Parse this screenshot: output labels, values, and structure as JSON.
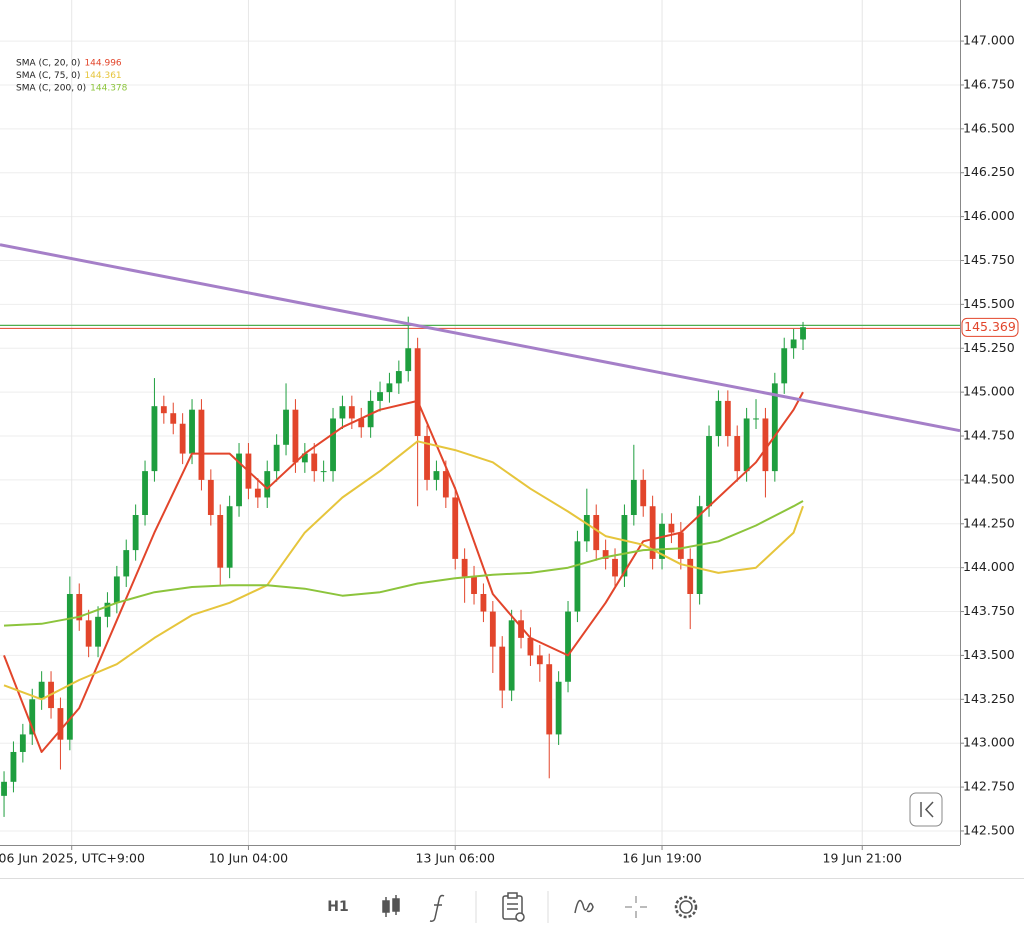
{
  "chart_data": {
    "type": "candlestick",
    "up_color": "#1e9e3e",
    "down_color": "#e2452b",
    "open": [
      142.7,
      142.78,
      142.95,
      143.05,
      143.25,
      143.35,
      143.2,
      143.02,
      143.85,
      143.7,
      143.55,
      143.72,
      143.8,
      143.95,
      144.1,
      144.3,
      144.55,
      144.92,
      144.88,
      144.82,
      144.65,
      144.9,
      144.5,
      144.3,
      144.0,
      144.35,
      144.65,
      144.45,
      144.4,
      144.55,
      144.7,
      144.9,
      144.6,
      144.65,
      144.55,
      144.55,
      144.85,
      144.92,
      144.85,
      144.8,
      144.95,
      145.0,
      145.05,
      145.12,
      145.25,
      144.75,
      144.5,
      144.55,
      144.4,
      144.05,
      143.95,
      143.85,
      143.75,
      143.55,
      143.3,
      143.7,
      143.6,
      143.5,
      143.45,
      143.05,
      143.35,
      143.75,
      144.15,
      144.3,
      144.1,
      144.05,
      143.95,
      144.3,
      144.5,
      144.35,
      144.05,
      144.25,
      144.2,
      144.05,
      143.85,
      144.35,
      144.75,
      144.95,
      144.75,
      144.55,
      144.85,
      144.85,
      144.55,
      145.05,
      145.25,
      145.3
    ],
    "high": [
      142.84,
      143.01,
      143.11,
      143.31,
      143.41,
      143.41,
      143.26,
      143.95,
      143.91,
      143.76,
      143.78,
      143.86,
      144.01,
      144.16,
      144.36,
      144.61,
      145.08,
      144.98,
      144.94,
      144.88,
      144.96,
      144.96,
      144.56,
      144.36,
      144.41,
      144.71,
      144.71,
      144.51,
      144.61,
      144.76,
      145.05,
      144.96,
      144.71,
      144.71,
      144.61,
      144.91,
      144.98,
      144.98,
      144.91,
      145.01,
      145.06,
      145.11,
      145.18,
      145.43,
      145.31,
      144.81,
      144.61,
      144.61,
      144.46,
      144.11,
      144.01,
      143.91,
      143.81,
      143.61,
      143.76,
      143.76,
      143.66,
      143.56,
      143.51,
      143.41,
      143.81,
      144.21,
      144.45,
      144.36,
      144.16,
      144.11,
      144.36,
      144.7,
      144.56,
      144.41,
      144.31,
      144.31,
      144.26,
      144.11,
      144.41,
      144.81,
      145.01,
      145.01,
      144.81,
      144.91,
      144.96,
      144.91,
      145.11,
      145.31,
      145.36,
      145.4
    ],
    "low": [
      142.58,
      142.72,
      142.89,
      142.99,
      143.19,
      143.14,
      142.85,
      142.96,
      143.64,
      143.49,
      143.49,
      143.66,
      143.74,
      143.89,
      144.04,
      144.24,
      144.49,
      144.82,
      144.76,
      144.59,
      144.59,
      144.44,
      144.24,
      143.9,
      143.94,
      144.29,
      144.39,
      144.34,
      144.34,
      144.49,
      144.64,
      144.54,
      144.54,
      144.49,
      144.49,
      144.49,
      144.79,
      144.79,
      144.74,
      144.74,
      144.89,
      144.94,
      144.99,
      145.06,
      144.35,
      144.44,
      144.44,
      144.34,
      143.99,
      143.8,
      143.79,
      143.69,
      143.4,
      143.2,
      143.24,
      143.54,
      143.44,
      143.35,
      142.8,
      142.99,
      143.29,
      143.69,
      144.09,
      144.04,
      143.99,
      143.89,
      143.89,
      144.24,
      144.29,
      143.99,
      143.99,
      144.14,
      143.99,
      143.65,
      143.79,
      144.29,
      144.69,
      144.69,
      144.49,
      144.49,
      144.79,
      144.4,
      144.49,
      144.99,
      145.19,
      145.24
    ],
    "close": [
      142.78,
      142.95,
      143.05,
      143.25,
      143.35,
      143.2,
      143.02,
      143.85,
      143.7,
      143.55,
      143.72,
      143.8,
      143.95,
      144.1,
      144.3,
      144.55,
      144.92,
      144.88,
      144.82,
      144.65,
      144.9,
      144.5,
      144.3,
      144.0,
      144.35,
      144.65,
      144.45,
      144.4,
      144.55,
      144.7,
      144.9,
      144.6,
      144.65,
      144.55,
      144.55,
      144.85,
      144.92,
      144.85,
      144.8,
      144.95,
      145.0,
      145.05,
      145.12,
      145.25,
      144.75,
      144.5,
      144.55,
      144.4,
      144.05,
      143.95,
      143.85,
      143.75,
      143.55,
      143.3,
      143.7,
      143.6,
      143.5,
      143.45,
      143.05,
      143.35,
      143.75,
      144.15,
      144.3,
      144.1,
      144.05,
      143.95,
      144.3,
      144.5,
      144.35,
      144.05,
      144.25,
      144.2,
      144.05,
      143.85,
      144.35,
      144.75,
      144.95,
      144.75,
      144.55,
      144.85,
      144.85,
      144.55,
      145.05,
      145.25,
      145.3,
      145.37
    ],
    "series": [
      {
        "name": "SMA (C, 20, 0)",
        "color": "#e2452b",
        "last": 144.996,
        "x": [
          0,
          4,
          8,
          12,
          16,
          20,
          24,
          28,
          32,
          36,
          40,
          44,
          48,
          52,
          56,
          60,
          64,
          68,
          72,
          76,
          80,
          84,
          85
        ],
        "values": [
          143.5,
          142.95,
          143.2,
          143.7,
          144.2,
          144.65,
          144.65,
          144.45,
          144.65,
          144.8,
          144.9,
          144.95,
          144.45,
          143.85,
          143.6,
          143.5,
          143.8,
          144.15,
          144.2,
          144.4,
          144.6,
          144.9,
          145.0
        ]
      },
      {
        "name": "SMA (C, 75, 0)",
        "color": "#e6c53c",
        "last": 144.361,
        "x": [
          0,
          4,
          8,
          12,
          16,
          20,
          24,
          28,
          32,
          36,
          40,
          44,
          48,
          52,
          56,
          60,
          64,
          68,
          72,
          76,
          80,
          84,
          85
        ],
        "values": [
          143.33,
          143.25,
          143.36,
          143.45,
          143.6,
          143.73,
          143.8,
          143.9,
          144.2,
          144.4,
          144.55,
          144.72,
          144.67,
          144.6,
          144.45,
          144.32,
          144.18,
          144.13,
          144.02,
          143.97,
          144.0,
          144.2,
          144.35
        ]
      },
      {
        "name": "SMA (C, 200, 0)",
        "color": "#8cc43c",
        "last": 144.378,
        "x": [
          0,
          4,
          8,
          12,
          16,
          20,
          24,
          28,
          32,
          36,
          40,
          44,
          48,
          52,
          56,
          60,
          64,
          68,
          72,
          76,
          80,
          84,
          85
        ],
        "values": [
          143.67,
          143.68,
          143.72,
          143.8,
          143.86,
          143.89,
          143.9,
          143.9,
          143.88,
          143.84,
          143.86,
          143.91,
          143.94,
          143.96,
          143.97,
          144.0,
          144.06,
          144.1,
          144.11,
          144.15,
          144.24,
          144.35,
          144.38
        ]
      }
    ],
    "trendline": {
      "color": "#a57fc8",
      "x": [
        -0.43,
        101.7
      ],
      "values": [
        145.84,
        144.78
      ]
    },
    "last_price": 145.369,
    "xlim": [
      -0.43,
      101.7
    ],
    "ylim": [
      142.42,
      147.234
    ],
    "xticks": [
      {
        "value": 7.2,
        "label": "06 Jun 2025, UTC+9:00"
      },
      {
        "value": 26,
        "label": "10 Jun 04:00"
      },
      {
        "value": 48,
        "label": "13 Jun 06:00"
      },
      {
        "value": 70,
        "label": "16 Jun 19:00"
      },
      {
        "value": 91.3,
        "label": "19 Jun 21:00"
      }
    ],
    "yticks": [
      {
        "value": 142.5,
        "label": "142.500"
      },
      {
        "value": 142.75,
        "label": "142.750"
      },
      {
        "value": 143,
        "label": "143.000"
      },
      {
        "value": 143.25,
        "label": "143.250"
      },
      {
        "value": 143.5,
        "label": "143.500"
      },
      {
        "value": 143.75,
        "label": "143.750"
      },
      {
        "value": 144,
        "label": "144.000"
      },
      {
        "value": 144.25,
        "label": "144.250"
      },
      {
        "value": 144.5,
        "label": "144.500"
      },
      {
        "value": 144.75,
        "label": "144.750"
      },
      {
        "value": 145,
        "label": "145.000"
      },
      {
        "value": 145.25,
        "label": "145.250"
      },
      {
        "value": 145.5,
        "label": "145.500"
      },
      {
        "value": 145.75,
        "label": "145.750"
      },
      {
        "value": 146,
        "label": "146.000"
      },
      {
        "value": 146.25,
        "label": "146.250"
      },
      {
        "value": 146.5,
        "label": "146.500"
      },
      {
        "value": 146.75,
        "label": "146.750"
      },
      {
        "value": 147,
        "label": "147.000"
      }
    ],
    "grid": true
  },
  "toolbar": {
    "timeframe": "H1"
  }
}
